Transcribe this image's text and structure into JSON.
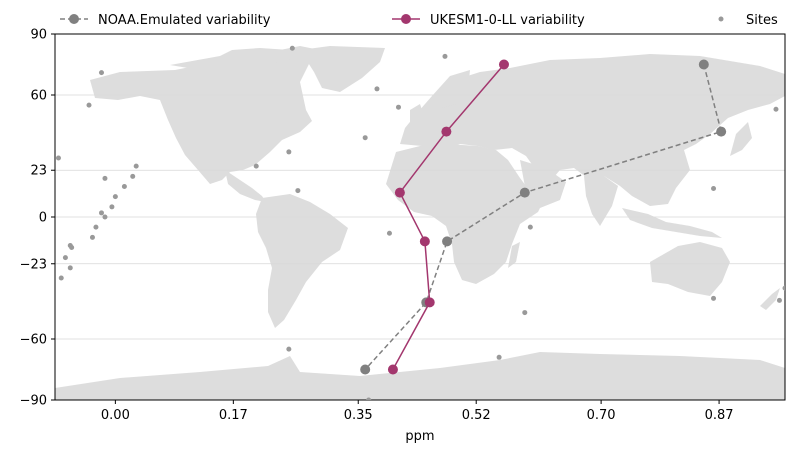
{
  "chart_data": {
    "type": "line",
    "xlabel": "ppm",
    "ylabel": "",
    "xlim": [
      -0.087,
      0.965
    ],
    "ylim": [
      -90,
      90
    ],
    "xticks": [
      0.0,
      0.17,
      0.35,
      0.52,
      0.7,
      0.87
    ],
    "xtick_labels": [
      "0.00",
      "0.17",
      "0.35",
      "0.52",
      "0.70",
      "0.87"
    ],
    "yticks": [
      90,
      60,
      23,
      0,
      -23,
      -60,
      -90
    ],
    "ytick_labels": [
      "90",
      "60",
      "23",
      "0",
      "−23",
      "−60",
      "−90"
    ],
    "grid": "horizontal",
    "legend_position": "top",
    "background": "world map (light gray landmasses)",
    "series": [
      {
        "name": "NOAA.Emulated variability",
        "style": "dashed",
        "marker": "circle",
        "color": "#808080",
        "points": [
          {
            "x": 0.848,
            "y": 75
          },
          {
            "x": 0.873,
            "y": 42
          },
          {
            "x": 0.59,
            "y": 12
          },
          {
            "x": 0.478,
            "y": -12
          },
          {
            "x": 0.448,
            "y": -42
          },
          {
            "x": 0.36,
            "y": -75
          }
        ]
      },
      {
        "name": "UKESM1-0-LL variability",
        "style": "solid",
        "marker": "circle",
        "color": "#a3376e",
        "points": [
          {
            "x": 0.56,
            "y": 75
          },
          {
            "x": 0.477,
            "y": 42
          },
          {
            "x": 0.41,
            "y": 12
          },
          {
            "x": 0.446,
            "y": -12
          },
          {
            "x": 0.453,
            "y": -42
          },
          {
            "x": 0.4,
            "y": -75
          }
        ]
      },
      {
        "name": "Sites",
        "style": "scatter",
        "marker": "small-circle",
        "color": "#999999",
        "points": [
          {
            "x": 0.255,
            "y": 83
          },
          {
            "x": 0.475,
            "y": 79
          },
          {
            "x": -0.02,
            "y": 71
          },
          {
            "x": 0.377,
            "y": 63
          },
          {
            "x": 0.408,
            "y": 54
          },
          {
            "x": -0.038,
            "y": 55
          },
          {
            "x": 0.36,
            "y": 39
          },
          {
            "x": 0.25,
            "y": 32
          },
          {
            "x": -0.082,
            "y": 29
          },
          {
            "x": 0.203,
            "y": 25
          },
          {
            "x": 0.03,
            "y": 25
          },
          {
            "x": -0.015,
            "y": 19
          },
          {
            "x": 0.025,
            "y": 20
          },
          {
            "x": 0.013,
            "y": 15
          },
          {
            "x": 0.0,
            "y": 10
          },
          {
            "x": 0.263,
            "y": 13
          },
          {
            "x": -0.005,
            "y": 5
          },
          {
            "x": -0.02,
            "y": 2
          },
          {
            "x": -0.015,
            "y": 0
          },
          {
            "x": -0.028,
            "y": -5
          },
          {
            "x": -0.033,
            "y": -10
          },
          {
            "x": -0.065,
            "y": -14
          },
          {
            "x": -0.063,
            "y": -15
          },
          {
            "x": -0.072,
            "y": -20
          },
          {
            "x": -0.065,
            "y": -25
          },
          {
            "x": -0.078,
            "y": -30
          },
          {
            "x": 0.395,
            "y": -8
          },
          {
            "x": 0.598,
            "y": -5
          },
          {
            "x": 0.862,
            "y": 14
          },
          {
            "x": 0.952,
            "y": 53
          },
          {
            "x": 0.59,
            "y": -47
          },
          {
            "x": 0.862,
            "y": -40
          },
          {
            "x": 0.957,
            "y": -41
          },
          {
            "x": 0.965,
            "y": -35
          },
          {
            "x": 0.25,
            "y": -65
          },
          {
            "x": 0.553,
            "y": -69
          },
          {
            "x": 0.365,
            "y": -90
          }
        ]
      }
    ]
  }
}
